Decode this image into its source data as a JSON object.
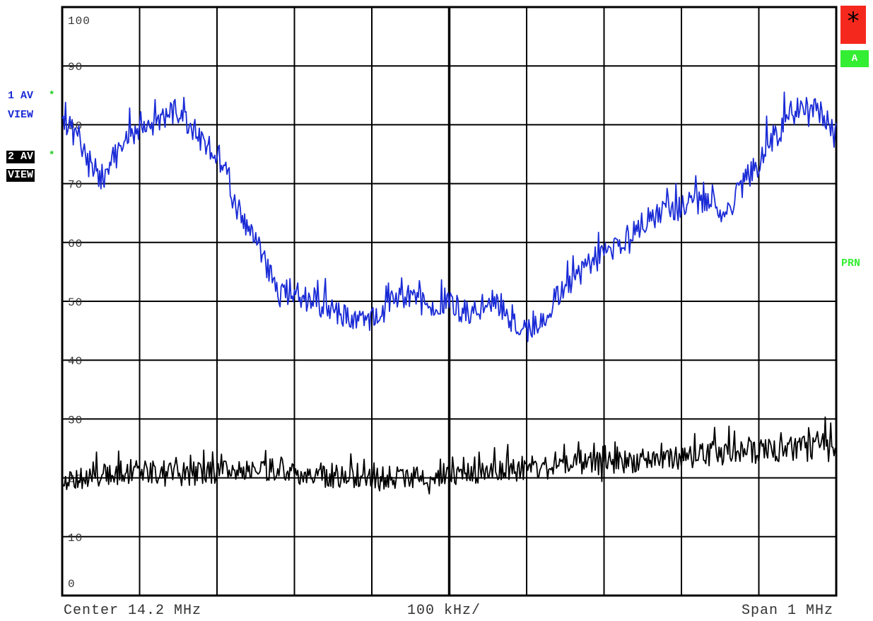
{
  "left_panel": {
    "trace1_line1": "1 AV",
    "trace1_line2": "VIEW",
    "trace2_line1": "2 AV",
    "trace2_line2": "VIEW",
    "marker_star": "*"
  },
  "right_panel": {
    "status_symbol": "*",
    "trace_mode": "A",
    "print_indicator": "PRN"
  },
  "footer": {
    "center": "Center 14.2 MHz",
    "per_div": "100 kHz/",
    "span": "Span 1 MHz"
  },
  "colors": {
    "trace1": "#1a2bd6",
    "trace2": "#000000",
    "status_red": "#f5281e",
    "status_green": "#33ee33"
  },
  "chart_data": {
    "type": "line",
    "title": "",
    "xlabel": "",
    "ylabel": "",
    "ylim": [
      0,
      100
    ],
    "y_ticks": [
      "100",
      "90",
      "80",
      "70",
      "60",
      "50",
      "40",
      "30",
      "20",
      "10",
      "0"
    ],
    "xlim": [
      13.7,
      14.7
    ],
    "x_divisions": 10,
    "grid": true,
    "series": [
      {
        "color": "#1a2bd6",
        "x": [
          13.7,
          13.72,
          13.74,
          13.75,
          13.76,
          13.78,
          13.8,
          13.82,
          13.84,
          13.86,
          13.88,
          13.9,
          13.91,
          13.92,
          13.94,
          13.96,
          13.98,
          14.0,
          14.02,
          14.04,
          14.06,
          14.08,
          14.1,
          14.12,
          14.14,
          14.16,
          14.18,
          14.2,
          14.22,
          14.24,
          14.26,
          14.28,
          14.3,
          14.32,
          14.34,
          14.36,
          14.38,
          14.4,
          14.42,
          14.44,
          14.46,
          14.48,
          14.5,
          14.52,
          14.54,
          14.56,
          14.58,
          14.6,
          14.62,
          14.64,
          14.66,
          14.68,
          14.7
        ],
        "y": [
          80,
          78,
          73,
          71,
          72,
          77,
          79,
          80,
          82,
          81,
          77,
          75,
          73,
          67,
          62,
          57,
          51,
          52,
          50,
          49,
          48,
          47,
          47,
          49,
          51,
          50,
          49,
          50,
          48,
          49,
          50,
          47,
          45,
          47,
          51,
          54,
          56,
          58,
          60,
          62,
          64,
          66,
          66,
          67,
          66,
          65,
          70,
          74,
          78,
          81,
          83,
          82,
          79
        ]
      },
      {
        "color": "#000000",
        "x": [
          13.7,
          13.75,
          13.8,
          13.85,
          13.9,
          13.95,
          14.0,
          14.05,
          14.1,
          14.15,
          14.2,
          14.25,
          14.3,
          14.35,
          14.4,
          14.45,
          14.5,
          14.55,
          14.6,
          14.65,
          14.7
        ],
        "y": [
          19.5,
          20.5,
          21,
          20.5,
          21,
          21.5,
          21,
          20.5,
          20,
          20,
          20.5,
          21,
          21.5,
          22,
          22.5,
          23,
          23.5,
          24,
          24.5,
          25,
          25.5
        ]
      }
    ]
  }
}
